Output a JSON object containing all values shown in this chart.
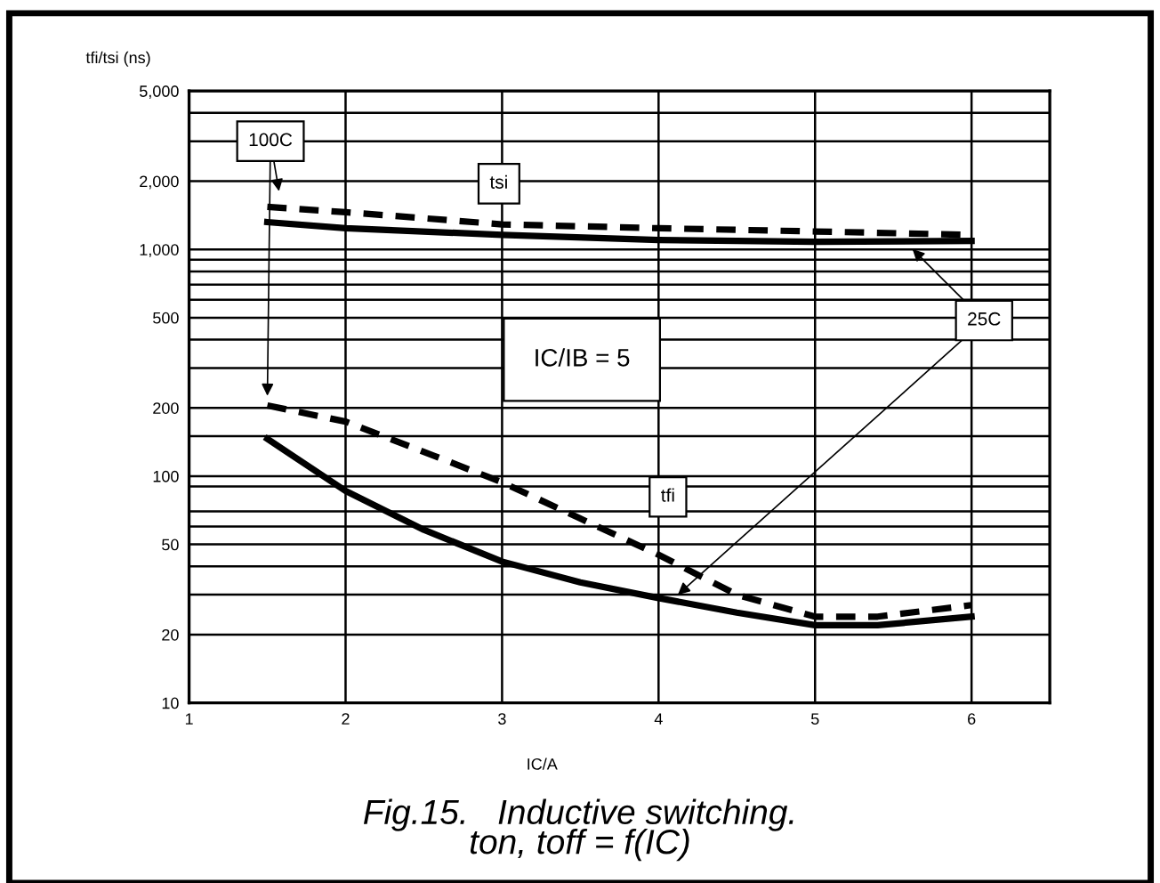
{
  "chart_data": {
    "type": "line",
    "title": "Fig.15.   Inductive switching.\nton, toff = f(IC)",
    "xlabel": "IC/A",
    "ylabel": "tfi/tsi (ns)",
    "x": [
      1.5,
      2,
      2.5,
      3,
      3.5,
      4,
      4.5,
      5,
      5.4,
      6
    ],
    "series": [
      {
        "color": "#000000",
        "line_style": "dashed",
        "values": [
          1540,
          1460,
          null,
          1290,
          null,
          1240,
          null,
          1200,
          null,
          1160
        ]
      },
      {
        "color": "#000000",
        "line_style": "solid",
        "values": [
          1320,
          1240,
          null,
          1160,
          null,
          1100,
          null,
          1080,
          null,
          1090
        ]
      },
      {
        "color": "#000000",
        "line_style": "dashed",
        "values": [
          205,
          174,
          null,
          94,
          65,
          45,
          30,
          24,
          24,
          27
        ]
      },
      {
        "color": "#000000",
        "line_style": "solid",
        "values": [
          146,
          86,
          58,
          42,
          34,
          29,
          25,
          22,
          22,
          24
        ]
      }
    ],
    "log": "y",
    "xlim": [
      1,
      6.5
    ],
    "ylim": [
      10,
      5000
    ],
    "xticks": [
      1,
      2,
      3,
      4,
      5,
      6
    ],
    "yticks": [
      10,
      20,
      {
        "value": 30,
        "label": null
      },
      {
        "value": 40,
        "label": null
      },
      50,
      {
        "value": 60,
        "label": null
      },
      {
        "value": 70,
        "label": null
      },
      {
        "value": 90,
        "label": null
      },
      100,
      {
        "value": 150,
        "label": null
      },
      200,
      {
        "value": 300,
        "label": null
      },
      {
        "value": 400,
        "label": null
      },
      500,
      {
        "value": 600,
        "label": null
      },
      {
        "value": 700,
        "label": null
      },
      {
        "value": 800,
        "label": null
      },
      {
        "value": 900,
        "label": null
      },
      {
        "value": 1000,
        "label": "1,000"
      },
      {
        "value": 2000,
        "label": "2,000"
      },
      {
        "value": 3000,
        "label": null
      },
      {
        "value": 4000,
        "label": null
      },
      {
        "value": 5000,
        "label": "5,000"
      }
    ],
    "grid": true,
    "legend": false,
    "marker": "none",
    "annotations": [
      "100C",
      "tsi",
      "IC/IB = 5",
      "tfi",
      "25C"
    ]
  }
}
